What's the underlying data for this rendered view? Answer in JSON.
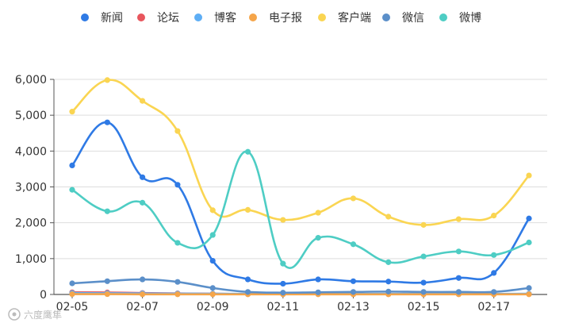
{
  "chart_data": {
    "type": "line",
    "smooth": true,
    "x": [
      "02-05",
      "02-06",
      "02-07",
      "02-08",
      "02-09",
      "02-10",
      "02-11",
      "02-12",
      "02-13",
      "02-14",
      "02-15",
      "02-16",
      "02-17",
      "02-18"
    ],
    "x_tick_labels": [
      "02-05",
      "02-07",
      "02-09",
      "02-11",
      "02-13",
      "02-15",
      "02-17"
    ],
    "y_ticks": [
      "0",
      "1,000",
      "2,000",
      "3,000",
      "4,000",
      "5,000",
      "6,000"
    ],
    "ylim": [
      0,
      6000
    ],
    "grid": true,
    "legend_position": "top-center",
    "series": [
      {
        "name": "新闻",
        "color": "#2f7ae5",
        "values": [
          3600,
          4800,
          3270,
          3060,
          940,
          420,
          300,
          420,
          370,
          360,
          330,
          460,
          600,
          2120
        ]
      },
      {
        "name": "论坛",
        "color": "#e8565d",
        "values": [
          60,
          55,
          40,
          30,
          20,
          10,
          10,
          15,
          10,
          10,
          10,
          10,
          10,
          15
        ]
      },
      {
        "name": "博客",
        "color": "#5eaef5",
        "values": [
          40,
          35,
          30,
          25,
          20,
          15,
          15,
          15,
          15,
          15,
          15,
          15,
          15,
          20
        ]
      },
      {
        "name": "电子报",
        "color": "#f5a54a",
        "values": [
          10,
          10,
          5,
          5,
          5,
          5,
          5,
          5,
          5,
          5,
          5,
          5,
          5,
          5
        ]
      },
      {
        "name": "客户端",
        "color": "#fad552",
        "values": [
          5100,
          5980,
          5400,
          4560,
          2350,
          2360,
          2080,
          2280,
          2680,
          2170,
          1940,
          2100,
          2200,
          3320
        ]
      },
      {
        "name": "微信",
        "color": "#5b8fc9",
        "values": [
          310,
          370,
          420,
          350,
          180,
          70,
          50,
          60,
          70,
          80,
          70,
          70,
          70,
          180
        ]
      },
      {
        "name": "微博",
        "color": "#4ecdc4",
        "values": [
          2920,
          2320,
          2560,
          1440,
          1660,
          3980,
          860,
          1580,
          1400,
          900,
          1060,
          1200,
          1100,
          1450
        ]
      }
    ],
    "watermark": "六度鹰隼"
  }
}
